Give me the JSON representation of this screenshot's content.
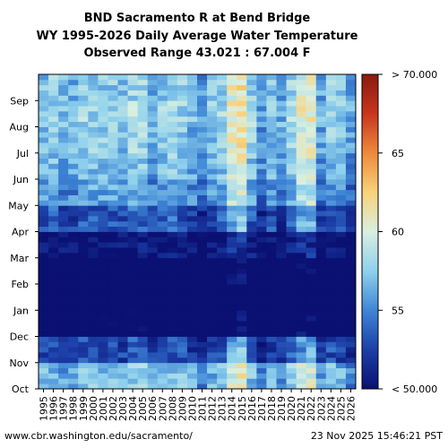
{
  "chart_data": {
    "type": "heatmap",
    "title_lines": [
      "BND Sacramento R at Bend Bridge",
      "WY 1995-2026 Daily Average Water Temperature",
      "Observed Range 43.021 : 67.004 F"
    ],
    "x_categories": [
      "1995",
      "1996",
      "1997",
      "1998",
      "1999",
      "2000",
      "2001",
      "2002",
      "2003",
      "2004",
      "2005",
      "2006",
      "2007",
      "2008",
      "2009",
      "2010",
      "2011",
      "2012",
      "2013",
      "2014",
      "2015",
      "2016",
      "2017",
      "2018",
      "2019",
      "2020",
      "2021",
      "2022",
      "2023",
      "2024",
      "2025",
      "2026"
    ],
    "y_categories": [
      "Oct",
      "Nov",
      "Dec",
      "Jan",
      "Feb",
      "Mar",
      "Apr",
      "May",
      "Jun",
      "Jul",
      "Aug",
      "Sep"
    ],
    "colorbar": {
      "min": 50,
      "max": 70,
      "ticks": [
        "< 50.000",
        "55",
        "60",
        "65",
        "> 70.000"
      ],
      "colors": [
        "#0a1172",
        "#1c3fa8",
        "#3f86d6",
        "#8fd1ec",
        "#d9efe0",
        "#f8d27a",
        "#ee8a3c",
        "#c8361e",
        "#8a1a10"
      ]
    },
    "monthly_mean_temperature_f": [
      56.5,
      52.5,
      48.5,
      47.0,
      48.0,
      50.0,
      53.0,
      55.5,
      56.5,
      57.0,
      57.5,
      57.0
    ],
    "year_offsets_f": [
      0.0,
      0.5,
      -0.5,
      -0.5,
      0.5,
      0.5,
      0.5,
      0.5,
      0.0,
      1.0,
      1.0,
      -0.5,
      0.5,
      1.0,
      0.5,
      -0.5,
      -1.5,
      0.0,
      0.5,
      3.5,
      4.5,
      0.5,
      -1.5,
      0.0,
      -1.0,
      1.0,
      3.0,
      3.5,
      -1.0,
      0.5,
      0.0,
      -1.5
    ]
  },
  "footer": {
    "source": "www.cbr.washington.edu/sacramento/",
    "timestamp": "23 Nov 2025 15:46:21 PST"
  }
}
